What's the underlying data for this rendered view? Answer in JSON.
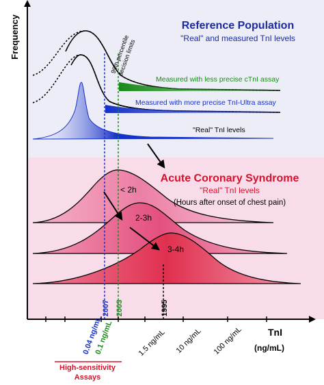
{
  "axes": {
    "y_label": "Frequency",
    "x_label": "TnI",
    "x_unit": "(ng/mL)"
  },
  "reference_panel": {
    "title": "Reference Population",
    "subtitle": "\"Real\" and measured TnI levels",
    "decision_note_line1": "99th percentile",
    "decision_note_line2": "decision limits",
    "label_less_precise": "Measured with less precise cTnI assay",
    "label_more_precise": "Measured with more precise TnI-Ultra assay",
    "label_real": "\"Real\" TnI levels"
  },
  "acs_panel": {
    "title": "Acute Coronary Syndrome",
    "subtitle": "\"Real\" TnI levels",
    "note": "(Hours after onset of chest pain)",
    "curves": [
      {
        "label": "< 2h"
      },
      {
        "label": "2-3h"
      },
      {
        "label": "3-4h"
      }
    ]
  },
  "vertical_lines": [
    {
      "year": "2007"
    },
    {
      "year": "2003"
    },
    {
      "year": "1995"
    }
  ],
  "x_ticks": [
    {
      "label": "0.04 ng/mL"
    },
    {
      "label": "0.1 ng/mL"
    },
    {
      "label": "1.5 ng/mL"
    },
    {
      "label": "10 ng/mL"
    },
    {
      "label": "100 ng/mL"
    }
  ],
  "footer": {
    "line1": "High-sensitivity",
    "line2": "Assays"
  },
  "colors": {
    "reference_bg": "#ecedf7",
    "acs_bg": "#f9dcea",
    "title_blue": "#1b2a9c",
    "title_red": "#d8102a",
    "green": "#1a8a1a",
    "blue": "#1630c8",
    "acs_pink_light": "#ec7fa5",
    "acs_pink_mid": "#e4507e",
    "acs_red": "#e0304f"
  }
}
